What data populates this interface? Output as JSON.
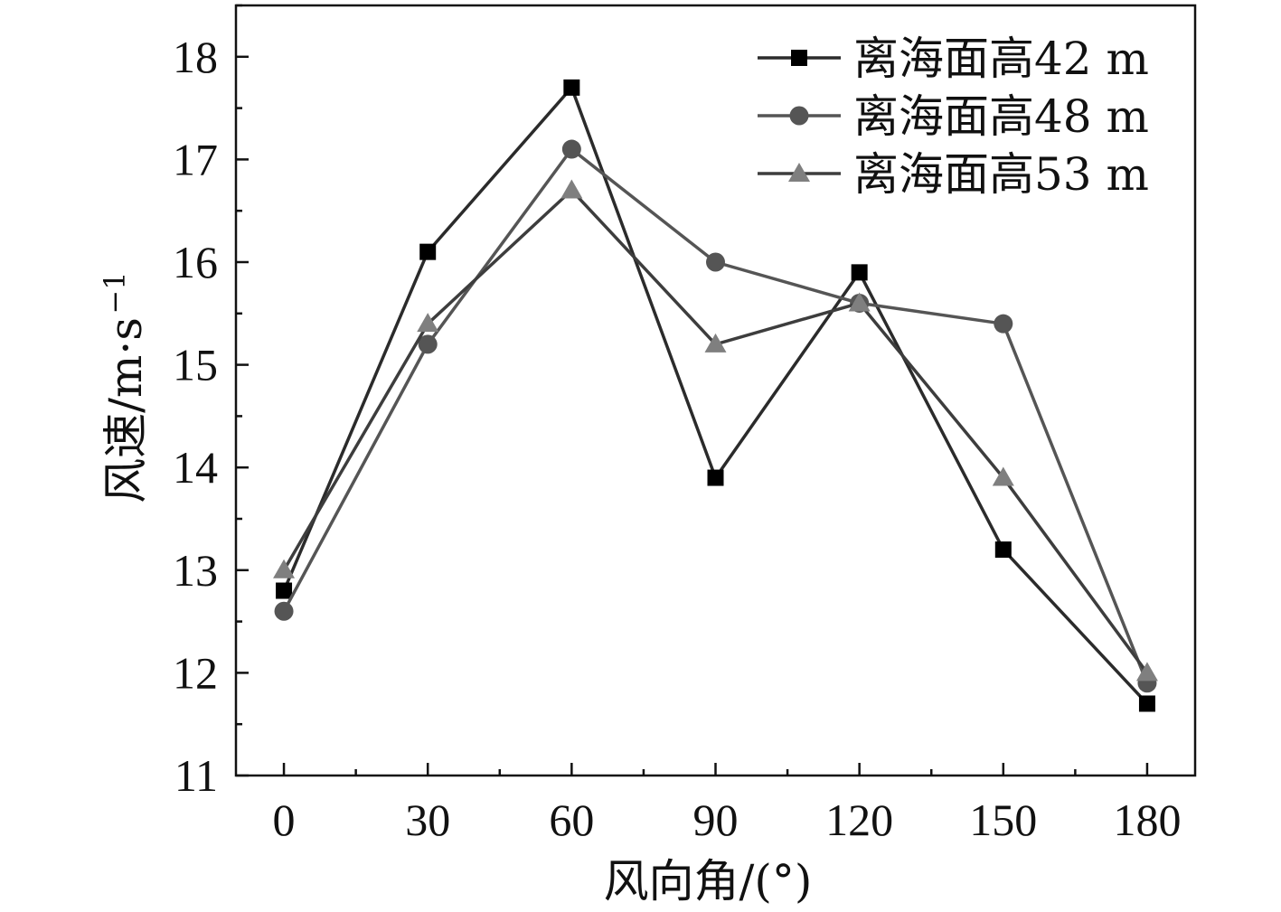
{
  "chart_data": {
    "type": "line",
    "xlabel": "风向角/(°)",
    "ylabel_main": "风速/m·s",
    "ylabel_sup": "−1",
    "x": [
      0,
      30,
      60,
      90,
      120,
      150,
      180
    ],
    "xticks": [
      "0",
      "30",
      "60",
      "90",
      "120",
      "150",
      "180"
    ],
    "yticks": [
      "11",
      "12",
      "13",
      "14",
      "15",
      "16",
      "17",
      "18"
    ],
    "xlim": [
      -10,
      190
    ],
    "ylim": [
      11,
      18.5
    ],
    "grid": false,
    "legend_position": "top-right",
    "series": [
      {
        "name": "离海面高42 m",
        "marker": "square",
        "color": "#2b2b2b",
        "marker_color": "#000000",
        "values": [
          12.8,
          16.1,
          17.7,
          13.9,
          15.9,
          13.2,
          11.7
        ]
      },
      {
        "name": "离海面高48 m",
        "marker": "circle",
        "color": "#555555",
        "marker_color": "#555555",
        "values": [
          12.6,
          15.2,
          17.1,
          16.0,
          15.6,
          15.4,
          11.9
        ]
      },
      {
        "name": "离海面高53 m",
        "marker": "triangle",
        "color": "#3d3d3d",
        "marker_color": "#7f7f7f",
        "values": [
          13.0,
          15.4,
          16.7,
          15.2,
          15.6,
          13.9,
          12.0
        ]
      }
    ]
  }
}
